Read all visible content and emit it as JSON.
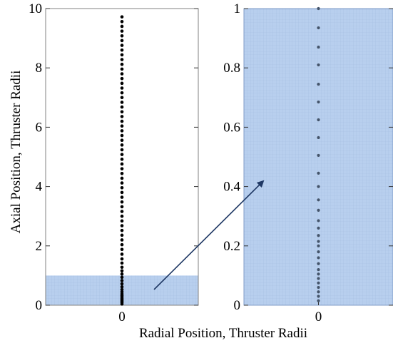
{
  "chart_data": [
    {
      "type": "scatter",
      "panel": "left",
      "xlabel": "",
      "ylabel": "Axial Position, Thruster Radii",
      "xlim": [
        -1,
        1
      ],
      "ylim": [
        0,
        10
      ],
      "x_ticks": [
        0
      ],
      "x_tick_labels": [
        "0"
      ],
      "y_ticks": [
        0,
        2,
        4,
        6,
        8,
        10
      ],
      "y_tick_labels": [
        "0",
        "2",
        "4",
        "6",
        "8",
        "10"
      ],
      "point_color": "#000000",
      "zoom_region": {
        "ymin": 0,
        "ymax": 1,
        "color": "#b8cfee"
      },
      "points": {
        "x": 0,
        "y": [
          0.04,
          0.09,
          0.14,
          0.18,
          0.22,
          0.27,
          0.32,
          0.38,
          0.45,
          0.53,
          0.62,
          0.72,
          0.83,
          0.94,
          1.05,
          1.16,
          1.28,
          1.42,
          1.56,
          1.72,
          1.88,
          2.04,
          2.2,
          2.36,
          2.52,
          2.68,
          2.84,
          3.0,
          3.16,
          3.32,
          3.48,
          3.64,
          3.8,
          3.96,
          4.12,
          4.28,
          4.44,
          4.6,
          4.76,
          4.92,
          5.08,
          5.24,
          5.4,
          5.56,
          5.72,
          5.88,
          6.04,
          6.2,
          6.36,
          6.52,
          6.68,
          6.84,
          7.0,
          7.16,
          7.32,
          7.48,
          7.64,
          7.8,
          7.96,
          8.12,
          8.28,
          8.44,
          8.6,
          8.76,
          8.92,
          9.08,
          9.24,
          9.4,
          9.56,
          9.72
        ]
      }
    },
    {
      "type": "scatter",
      "panel": "right",
      "xlabel": "Radial Position, Thruster Radii",
      "ylabel": "",
      "xlim": [
        -1,
        1
      ],
      "ylim": [
        0,
        1
      ],
      "x_ticks": [
        0
      ],
      "x_tick_labels": [
        "0"
      ],
      "y_ticks": [
        0,
        0.2,
        0.4,
        0.6,
        0.8,
        1
      ],
      "y_tick_labels": [
        "0",
        "0.2",
        "0.4",
        "0.6",
        "0.8",
        "1"
      ],
      "point_color": "#44546a",
      "background_color": "#b8cfee",
      "points": {
        "x": 0,
        "y": [
          0.015,
          0.03,
          0.045,
          0.06,
          0.075,
          0.09,
          0.105,
          0.12,
          0.14,
          0.16,
          0.18,
          0.2,
          0.215,
          0.235,
          0.26,
          0.285,
          0.32,
          0.355,
          0.4,
          0.445,
          0.505,
          0.565,
          0.625,
          0.685,
          0.745,
          0.81,
          0.87,
          0.935,
          1.0
        ]
      }
    }
  ]
}
